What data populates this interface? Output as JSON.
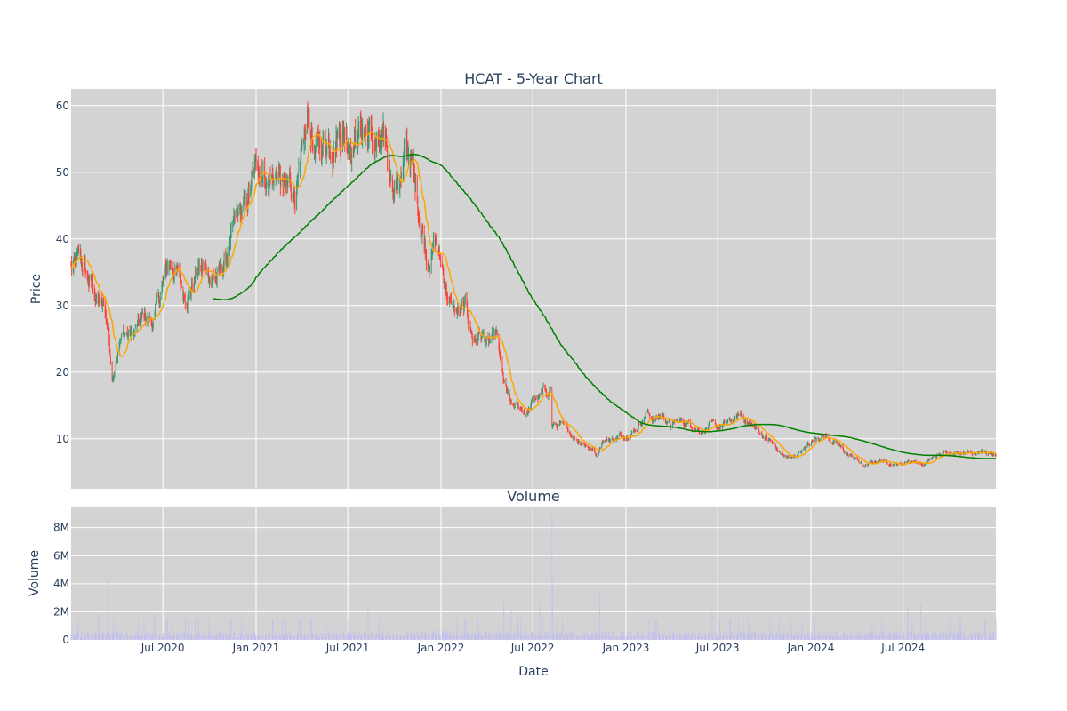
{
  "chart_data": [
    {
      "type": "candlestick",
      "title": "HCAT - 5-Year Chart",
      "ylabel": "Price",
      "ylim": [
        2.5,
        62.5
      ],
      "yticks": [
        10,
        20,
        30,
        40,
        50,
        60
      ],
      "background": "#d3d3d3",
      "increasing_color": "#3d9970",
      "decreasing_color": "#ff4136",
      "anchors": [
        [
          "2020-01-02",
          35.5
        ],
        [
          "2020-01-20",
          36.5
        ],
        [
          "2020-02-05",
          33.5
        ],
        [
          "2020-02-20",
          31.5
        ],
        [
          "2020-03-08",
          29.0
        ],
        [
          "2020-03-16",
          26.0
        ],
        [
          "2020-03-23",
          18.5
        ],
        [
          "2020-04-05",
          25.5
        ],
        [
          "2020-04-20",
          26.0
        ],
        [
          "2020-05-05",
          25.5
        ],
        [
          "2020-05-25",
          28.0
        ],
        [
          "2020-06-10",
          27.5
        ],
        [
          "2020-06-25",
          31.0
        ],
        [
          "2020-07-10",
          35.5
        ],
        [
          "2020-07-25",
          36.0
        ],
        [
          "2020-08-10",
          32.0
        ],
        [
          "2020-08-25",
          33.0
        ],
        [
          "2020-09-10",
          35.5
        ],
        [
          "2020-09-25",
          35.0
        ],
        [
          "2020-10-10",
          34.5
        ],
        [
          "2020-10-25",
          35.0
        ],
        [
          "2020-11-10",
          38.5
        ],
        [
          "2020-11-25",
          42.5
        ],
        [
          "2020-12-10",
          44.0
        ],
        [
          "2020-12-25",
          48.0
        ],
        [
          "2021-01-10",
          52.0
        ],
        [
          "2021-01-25",
          49.0
        ],
        [
          "2021-02-10",
          50.0
        ],
        [
          "2021-02-25",
          46.5
        ],
        [
          "2021-03-15",
          47.5
        ],
        [
          "2021-03-30",
          49.0
        ],
        [
          "2021-04-15",
          57.0
        ],
        [
          "2021-04-30",
          53.0
        ],
        [
          "2021-05-15",
          54.5
        ],
        [
          "2021-05-30",
          55.5
        ],
        [
          "2021-06-15",
          57.5
        ],
        [
          "2021-06-30",
          56.5
        ],
        [
          "2021-07-15",
          56.0
        ],
        [
          "2021-07-30",
          57.0
        ],
        [
          "2021-08-15",
          55.0
        ],
        [
          "2021-08-30",
          53.5
        ],
        [
          "2021-09-15",
          52.0
        ],
        [
          "2021-09-30",
          48.5
        ],
        [
          "2021-10-15",
          50.0
        ],
        [
          "2021-10-30",
          53.5
        ],
        [
          "2021-11-10",
          47.5
        ],
        [
          "2021-11-20",
          44.0
        ],
        [
          "2021-12-05",
          37.5
        ],
        [
          "2021-12-20",
          40.0
        ],
        [
          "2022-01-05",
          35.0
        ],
        [
          "2022-01-20",
          30.0
        ],
        [
          "2022-02-05",
          28.5
        ],
        [
          "2022-02-20",
          29.0
        ],
        [
          "2022-03-05",
          25.0
        ],
        [
          "2022-03-20",
          26.0
        ],
        [
          "2022-04-05",
          24.0
        ],
        [
          "2022-04-20",
          25.0
        ],
        [
          "2022-05-05",
          18.0
        ],
        [
          "2022-05-20",
          14.5
        ],
        [
          "2022-06-05",
          14.5
        ],
        [
          "2022-06-20",
          14.0
        ],
        [
          "2022-07-05",
          16.0
        ],
        [
          "2022-07-20",
          16.5
        ],
        [
          "2022-08-05",
          17.5
        ],
        [
          "2022-08-08",
          12.0
        ],
        [
          "2022-08-25",
          12.0
        ],
        [
          "2022-09-10",
          11.0
        ],
        [
          "2022-09-25",
          10.0
        ],
        [
          "2022-10-10",
          9.5
        ],
        [
          "2022-10-25",
          8.5
        ],
        [
          "2022-11-05",
          7.5
        ],
        [
          "2022-11-15",
          10.0
        ],
        [
          "2022-12-05",
          10.0
        ],
        [
          "2022-12-25",
          10.5
        ],
        [
          "2023-01-20",
          11.5
        ],
        [
          "2023-02-10",
          14.0
        ],
        [
          "2023-02-25",
          13.0
        ],
        [
          "2023-03-15",
          13.5
        ],
        [
          "2023-03-30",
          12.0
        ],
        [
          "2023-04-15",
          12.5
        ],
        [
          "2023-04-30",
          12.5
        ],
        [
          "2023-05-15",
          12.0
        ],
        [
          "2023-05-30",
          11.5
        ],
        [
          "2023-06-15",
          12.0
        ],
        [
          "2023-06-30",
          11.5
        ],
        [
          "2023-07-15",
          12.0
        ],
        [
          "2023-07-30",
          12.5
        ],
        [
          "2023-08-15",
          13.5
        ],
        [
          "2023-08-30",
          12.5
        ],
        [
          "2023-09-15",
          11.5
        ],
        [
          "2023-09-30",
          10.5
        ],
        [
          "2023-10-15",
          9.5
        ],
        [
          "2023-10-30",
          8.0
        ],
        [
          "2023-11-15",
          7.0
        ],
        [
          "2023-11-30",
          7.5
        ],
        [
          "2023-12-15",
          8.0
        ],
        [
          "2023-12-30",
          9.5
        ],
        [
          "2024-01-15",
          10.5
        ],
        [
          "2024-01-30",
          10.5
        ],
        [
          "2024-02-15",
          9.5
        ],
        [
          "2024-02-29",
          8.5
        ],
        [
          "2024-03-15",
          7.5
        ],
        [
          "2024-03-30",
          7.0
        ],
        [
          "2024-04-15",
          5.8
        ],
        [
          "2024-04-30",
          6.3
        ],
        [
          "2024-05-15",
          6.8
        ],
        [
          "2024-05-30",
          6.6
        ],
        [
          "2024-06-15",
          6.3
        ],
        [
          "2024-06-30",
          6.2
        ],
        [
          "2024-07-10",
          6.8
        ],
        [
          "2024-07-30",
          6.5
        ],
        [
          "2024-08-10",
          6.0
        ],
        [
          "2024-08-30",
          7.2
        ],
        [
          "2024-09-15",
          7.6
        ],
        [
          "2024-09-30",
          8.2
        ],
        [
          "2024-10-15",
          8.0
        ],
        [
          "2024-10-30",
          8.3
        ],
        [
          "2024-11-15",
          8.0
        ],
        [
          "2024-11-30",
          8.5
        ],
        [
          "2024-12-15",
          7.8
        ],
        [
          "2024-12-31",
          7.2
        ]
      ],
      "moving_averages": [
        {
          "window": 20,
          "color": "#ffa500"
        },
        {
          "window": 200,
          "color": "#008000"
        }
      ]
    },
    {
      "type": "bar",
      "title": "Volume",
      "xlabel": "Date",
      "ylabel": "Volume",
      "ylim": [
        0,
        9500000
      ],
      "yticks": [
        0,
        2000000,
        4000000,
        6000000,
        8000000
      ],
      "ytick_labels": [
        "0",
        "2M",
        "4M",
        "6M",
        "8M"
      ],
      "background": "#d3d3d3",
      "bar_color": "#c4c0ec",
      "base_volume": 450000,
      "spikes": [
        [
          "2020-03-16",
          4200000
        ],
        [
          "2020-02-25",
          1800000
        ],
        [
          "2020-06-15",
          1900000
        ],
        [
          "2020-08-20",
          1500000
        ],
        [
          "2021-03-01",
          1300000
        ],
        [
          "2021-05-20",
          1400000
        ],
        [
          "2021-08-10",
          2400000
        ],
        [
          "2022-05-05",
          3000000
        ],
        [
          "2022-05-20",
          2200000
        ],
        [
          "2022-07-15",
          2600000
        ],
        [
          "2022-08-08",
          8900000
        ],
        [
          "2022-08-09",
          4000000
        ],
        [
          "2022-09-20",
          1800000
        ],
        [
          "2022-11-10",
          3500000
        ],
        [
          "2023-06-20",
          2000000
        ],
        [
          "2023-07-25",
          1500000
        ],
        [
          "2024-03-10",
          1600000
        ],
        [
          "2024-07-10",
          2300000
        ],
        [
          "2024-08-05",
          2500000
        ]
      ]
    }
  ],
  "x_axis": {
    "range": [
      "2020-01-02",
      "2024-12-31"
    ],
    "ticks": [
      "2020-07-01",
      "2021-01-01",
      "2021-07-01",
      "2022-01-01",
      "2022-07-01",
      "2023-01-01",
      "2023-07-01",
      "2024-01-01",
      "2024-07-01"
    ],
    "tick_labels": [
      "Jul 2020",
      "Jan 2021",
      "Jul 2021",
      "Jan 2022",
      "Jul 2022",
      "Jan 2023",
      "Jul 2023",
      "Jan 2024",
      "Jul 2024"
    ]
  }
}
